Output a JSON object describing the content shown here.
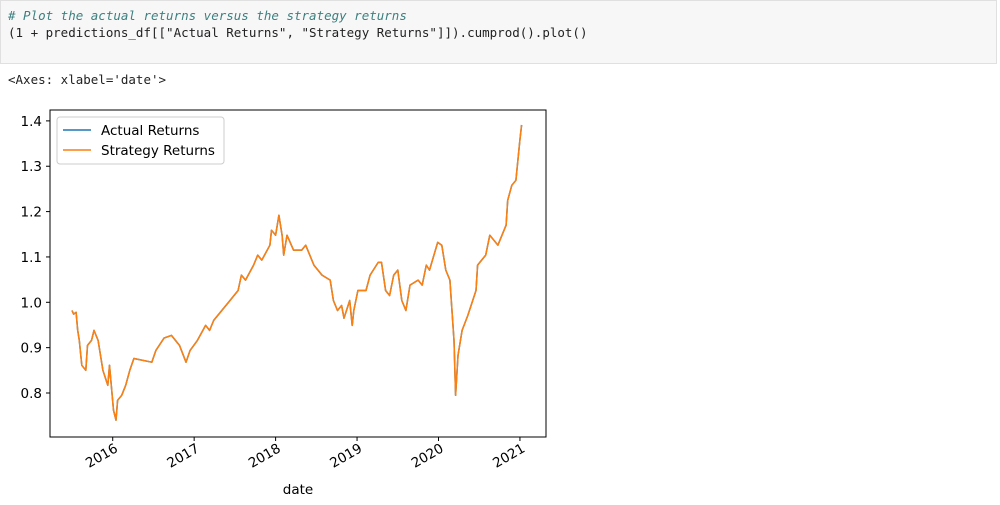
{
  "cell": {
    "code": [
      "# Plot the actual returns versus the strategy returns",
      "(1 + predictions_df[[\"Actual Returns\", \"Strategy Returns\"]]).cumprod().plot()"
    ],
    "output": "<Axes: xlabel='date'>"
  },
  "chart_data": {
    "type": "line",
    "xlabel": "date",
    "x": [
      2015.5,
      2015.52,
      2015.55,
      2015.57,
      2015.59,
      2015.62,
      2015.67,
      2015.69,
      2015.74,
      2015.77,
      2015.82,
      2015.88,
      2015.94,
      2015.96,
      2016.01,
      2016.04,
      2016.06,
      2016.11,
      2016.16,
      2016.21,
      2016.26,
      2016.48,
      2016.53,
      2016.63,
      2016.72,
      2016.82,
      2016.9,
      2016.95,
      2017.04,
      2017.14,
      2017.19,
      2017.24,
      2017.34,
      2017.44,
      2017.54,
      2017.58,
      2017.63,
      2017.73,
      2017.78,
      2017.83,
      2017.93,
      2017.95,
      2018.0,
      2018.04,
      2018.08,
      2018.1,
      2018.14,
      2018.22,
      2018.32,
      2018.37,
      2018.47,
      2018.57,
      2018.67,
      2018.71,
      2018.76,
      2018.81,
      2018.84,
      2018.91,
      2018.94,
      2018.96,
      2019.01,
      2019.11,
      2019.16,
      2019.26,
      2019.3,
      2019.35,
      2019.4,
      2019.45,
      2019.5,
      2019.55,
      2019.6,
      2019.65,
      2019.75,
      2019.8,
      2019.85,
      2019.89,
      2019.99,
      2020.04,
      2020.09,
      2020.14,
      2020.19,
      2020.21,
      2020.24,
      2020.29,
      2020.36,
      2020.46,
      2020.48,
      2020.58,
      2020.63,
      2020.73,
      2020.83,
      2020.85,
      2020.9,
      2020.95,
      2021.0,
      2021.02
    ],
    "series": [
      {
        "name": "Actual Returns",
        "color": "#1f77b4",
        "values": [
          0.982,
          0.974,
          0.978,
          0.938,
          0.916,
          0.861,
          0.85,
          0.905,
          0.916,
          0.938,
          0.916,
          0.85,
          0.817,
          0.861,
          0.762,
          0.74,
          0.784,
          0.795,
          0.817,
          0.85,
          0.876,
          0.868,
          0.894,
          0.921,
          0.927,
          0.905,
          0.868,
          0.894,
          0.916,
          0.949,
          0.938,
          0.96,
          0.982,
          1.004,
          1.026,
          1.06,
          1.049,
          1.082,
          1.104,
          1.093,
          1.126,
          1.159,
          1.148,
          1.192,
          1.148,
          1.104,
          1.148,
          1.115,
          1.115,
          1.126,
          1.082,
          1.06,
          1.049,
          1.004,
          0.982,
          0.993,
          0.965,
          1.004,
          0.949,
          0.982,
          1.026,
          1.026,
          1.06,
          1.088,
          1.088,
          1.026,
          1.015,
          1.06,
          1.071,
          1.004,
          0.982,
          1.038,
          1.049,
          1.038,
          1.082,
          1.071,
          1.132,
          1.126,
          1.071,
          1.049,
          0.916,
          0.795,
          0.883,
          0.938,
          0.971,
          1.026,
          1.082,
          1.104,
          1.148,
          1.126,
          1.17,
          1.225,
          1.258,
          1.269,
          1.358,
          1.391
        ]
      },
      {
        "name": "Strategy Returns",
        "color": "#ff7f0e",
        "values": [
          0.982,
          0.974,
          0.978,
          0.938,
          0.916,
          0.861,
          0.85,
          0.905,
          0.916,
          0.938,
          0.916,
          0.85,
          0.817,
          0.861,
          0.762,
          0.74,
          0.784,
          0.795,
          0.817,
          0.85,
          0.876,
          0.868,
          0.894,
          0.921,
          0.927,
          0.905,
          0.868,
          0.894,
          0.916,
          0.949,
          0.938,
          0.96,
          0.982,
          1.004,
          1.026,
          1.06,
          1.049,
          1.082,
          1.104,
          1.093,
          1.126,
          1.159,
          1.148,
          1.192,
          1.148,
          1.104,
          1.148,
          1.115,
          1.115,
          1.126,
          1.082,
          1.06,
          1.049,
          1.004,
          0.982,
          0.993,
          0.965,
          1.004,
          0.949,
          0.982,
          1.026,
          1.026,
          1.06,
          1.088,
          1.088,
          1.026,
          1.015,
          1.06,
          1.071,
          1.004,
          0.982,
          1.038,
          1.049,
          1.038,
          1.082,
          1.071,
          1.132,
          1.126,
          1.071,
          1.049,
          0.916,
          0.795,
          0.883,
          0.938,
          0.971,
          1.026,
          1.082,
          1.104,
          1.148,
          1.126,
          1.17,
          1.225,
          1.258,
          1.269,
          1.358,
          1.391
        ]
      }
    ],
    "xlim": [
      2015.23,
      2021.32
    ],
    "xticks": [
      2016,
      2017,
      2018,
      2019,
      2020,
      2021
    ],
    "ylim": [
      0.703,
      1.424
    ],
    "yticks": [
      0.8,
      0.9,
      {
        "value": 1,
        "label": "1.0"
      },
      1.1,
      1.2,
      1.3,
      1.4
    ],
    "legend": "upper left",
    "grid": false
  }
}
